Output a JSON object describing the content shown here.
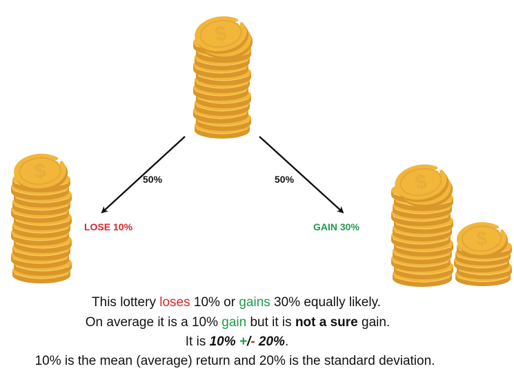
{
  "diagram": {
    "left_probability": "50%",
    "right_probability": "50%",
    "left_outcome": "LOSE 10%",
    "right_outcome": "GAIN 30%"
  },
  "caption": {
    "line1": {
      "a": "This lottery ",
      "loses": "loses",
      "b": " 10% or ",
      "gains": "gains",
      "c": " 30% equally likely."
    },
    "line2": {
      "a": "On average it is a 10% ",
      "gain": "gain",
      "b": " but it is ",
      "not_sure": "not a sure",
      "c": " gain."
    },
    "line3": {
      "a": "It is ",
      "mean": "10%",
      "plus": "+",
      "slash": "/",
      "minus": "-",
      "sd": "20%",
      "end": "."
    },
    "line4": "10% is the mean (average) return and 20% is the standard deviation."
  },
  "colors": {
    "lose": "#d8262b",
    "gain": "#1f9a4b",
    "coin": "#f2b63a",
    "coin_dark": "#d9962a",
    "arrow": "#111111"
  },
  "icons": [
    "coin-stack-icon",
    "dollar-coin-icon",
    "sparkle-icon",
    "arrow-icon"
  ]
}
